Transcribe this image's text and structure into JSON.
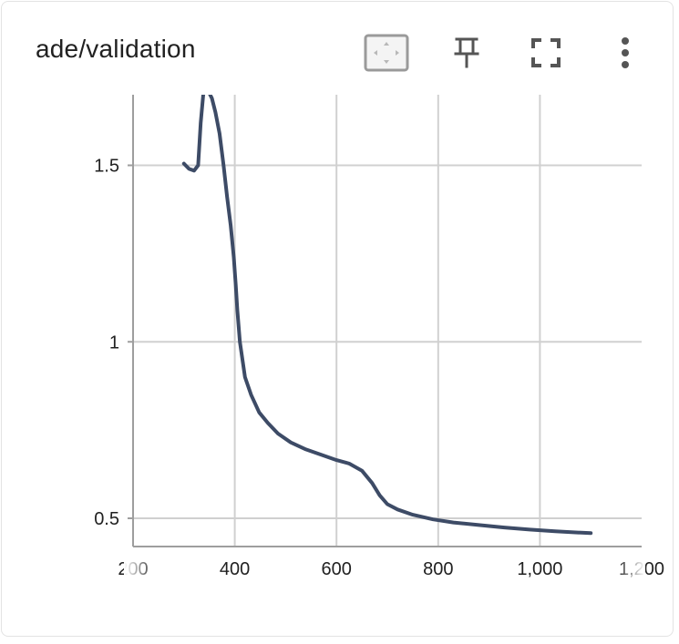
{
  "card": {
    "title": "ade/validation",
    "toolbar": {
      "fit_icon": "fit-domain-icon",
      "pin_icon": "pin-icon",
      "fullscreen_icon": "fullscreen-icon",
      "menu_icon": "more-vert-icon"
    }
  },
  "colors": {
    "line": "#3d4b66",
    "grid": "#d0d0d0",
    "axis": "#9e9e9e"
  },
  "chart_data": {
    "type": "line",
    "title": "ade/validation",
    "xlabel": "",
    "ylabel": "",
    "xlim": [
      200,
      1200
    ],
    "ylim": [
      0.42,
      1.7
    ],
    "x_ticks": [
      200,
      400,
      600,
      800,
      1000,
      1200
    ],
    "x_tick_labels": [
      "200",
      "400",
      "600",
      "800",
      "1,000",
      "1,200"
    ],
    "y_ticks": [
      0.5,
      1,
      1.5
    ],
    "y_tick_labels": [
      "0.5",
      "1",
      "1.5"
    ],
    "grid": true,
    "series": [
      {
        "name": "",
        "x": [
          300,
          310,
          320,
          328,
          333,
          338,
          343,
          348,
          355,
          362,
          370,
          378,
          385,
          392,
          398,
          402,
          405,
          410,
          420,
          432,
          448,
          465,
          485,
          510,
          540,
          570,
          600,
          625,
          650,
          670,
          685,
          700,
          720,
          750,
          790,
          830,
          880,
          930,
          980,
          1030,
          1070,
          1100
        ],
        "y": [
          1.505,
          1.49,
          1.485,
          1.5,
          1.62,
          1.7,
          1.72,
          1.71,
          1.69,
          1.65,
          1.59,
          1.5,
          1.41,
          1.33,
          1.24,
          1.16,
          1.09,
          1.0,
          0.9,
          0.85,
          0.8,
          0.77,
          0.74,
          0.715,
          0.695,
          0.68,
          0.665,
          0.655,
          0.635,
          0.6,
          0.565,
          0.54,
          0.525,
          0.51,
          0.497,
          0.488,
          0.481,
          0.474,
          0.468,
          0.463,
          0.46,
          0.458
        ]
      }
    ]
  }
}
